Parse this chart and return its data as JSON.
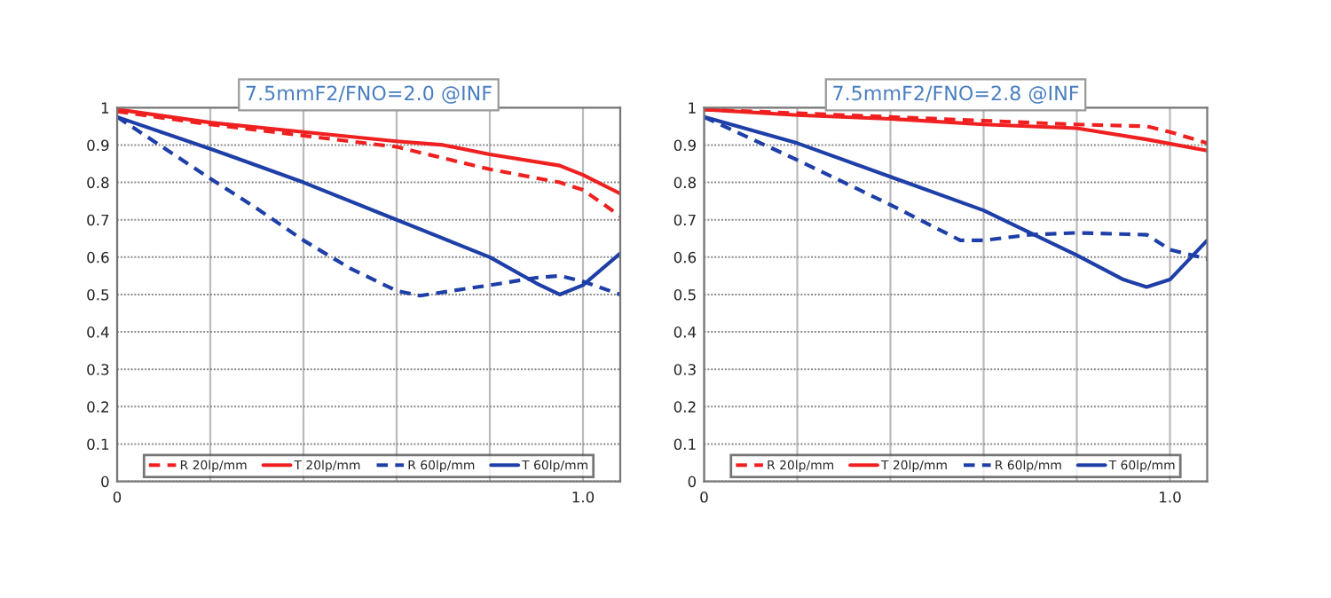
{
  "chart_data": [
    {
      "type": "line",
      "title": "7.5mmF2/FNO=2.0 @INF",
      "xlim": [
        0,
        1.08
      ],
      "ylim": [
        0,
        1
      ],
      "xticks": [
        {
          "value": 0,
          "label": "0"
        },
        {
          "value": 0.2,
          "label": null
        },
        {
          "value": 0.4,
          "label": null
        },
        {
          "value": 0.6,
          "label": null
        },
        {
          "value": 0.8,
          "label": null
        },
        {
          "value": 1.0,
          "label": "1.0"
        }
      ],
      "yticks": [
        {
          "value": 0,
          "label": "0"
        },
        {
          "value": 0.1,
          "label": "0.1"
        },
        {
          "value": 0.2,
          "label": "0.2"
        },
        {
          "value": 0.3,
          "label": "0.3"
        },
        {
          "value": 0.4,
          "label": "0.4"
        },
        {
          "value": 0.5,
          "label": "0.5"
        },
        {
          "value": 0.6,
          "label": "0.6"
        },
        {
          "value": 0.7,
          "label": "0.7"
        },
        {
          "value": 0.8,
          "label": "0.8"
        },
        {
          "value": 0.9,
          "label": "0.9"
        },
        {
          "value": 1,
          "label": "1"
        }
      ],
      "grid": true,
      "legend": "bottom",
      "series": [
        {
          "name": "R 20lp/mm",
          "color": "#f02020",
          "line_style": "dashed",
          "x": [
            0,
            0.2,
            0.4,
            0.6,
            0.8,
            0.95,
            1.0,
            1.08
          ],
          "values": [
            0.99,
            0.955,
            0.925,
            0.895,
            0.835,
            0.8,
            0.78,
            0.71
          ]
        },
        {
          "name": "T 20lp/mm",
          "color": "#f02020",
          "line_style": "solid",
          "x": [
            0,
            0.2,
            0.4,
            0.6,
            0.7,
            0.8,
            0.95,
            1.0,
            1.08
          ],
          "values": [
            0.995,
            0.96,
            0.935,
            0.91,
            0.9,
            0.875,
            0.845,
            0.82,
            0.77
          ]
        },
        {
          "name": "R 60lp/mm",
          "color": "#1f3fa8",
          "line_style": "dashed",
          "x": [
            0,
            0.2,
            0.3,
            0.4,
            0.5,
            0.6,
            0.65,
            0.8,
            0.9,
            0.95,
            1.0,
            1.08
          ],
          "values": [
            0.975,
            0.81,
            0.73,
            0.645,
            0.57,
            0.51,
            0.497,
            0.525,
            0.545,
            0.55,
            0.535,
            0.5
          ]
        },
        {
          "name": "T 60lp/mm",
          "color": "#1f3fa8",
          "line_style": "solid",
          "x": [
            0,
            0.2,
            0.4,
            0.6,
            0.8,
            0.9,
            0.95,
            1.0,
            1.08
          ],
          "values": [
            0.975,
            0.89,
            0.8,
            0.7,
            0.6,
            0.53,
            0.5,
            0.525,
            0.61
          ]
        }
      ]
    },
    {
      "type": "line",
      "title": "7.5mmF2/FNO=2.8 @INF",
      "xlim": [
        0,
        1.08
      ],
      "ylim": [
        0,
        1
      ],
      "xticks": [
        {
          "value": 0,
          "label": "0"
        },
        {
          "value": 0.2,
          "label": null
        },
        {
          "value": 0.4,
          "label": null
        },
        {
          "value": 0.6,
          "label": null
        },
        {
          "value": 0.8,
          "label": null
        },
        {
          "value": 1.0,
          "label": "1.0"
        }
      ],
      "yticks": [
        {
          "value": 0,
          "label": "0"
        },
        {
          "value": 0.1,
          "label": "0.1"
        },
        {
          "value": 0.2,
          "label": "0.2"
        },
        {
          "value": 0.3,
          "label": "0.3"
        },
        {
          "value": 0.4,
          "label": "0.4"
        },
        {
          "value": 0.5,
          "label": "0.5"
        },
        {
          "value": 0.6,
          "label": "0.6"
        },
        {
          "value": 0.7,
          "label": "0.7"
        },
        {
          "value": 0.8,
          "label": "0.8"
        },
        {
          "value": 0.9,
          "label": "0.9"
        },
        {
          "value": 1,
          "label": "1"
        }
      ],
      "grid": true,
      "legend": "bottom",
      "series": [
        {
          "name": "R 20lp/mm",
          "color": "#f02020",
          "line_style": "dashed",
          "x": [
            0,
            0.2,
            0.4,
            0.6,
            0.8,
            0.95,
            1.0,
            1.08
          ],
          "values": [
            0.995,
            0.985,
            0.975,
            0.965,
            0.955,
            0.95,
            0.935,
            0.905
          ]
        },
        {
          "name": "T 20lp/mm",
          "color": "#f02020",
          "line_style": "solid",
          "x": [
            0,
            0.2,
            0.4,
            0.6,
            0.8,
            0.95,
            1.08
          ],
          "values": [
            0.995,
            0.98,
            0.97,
            0.955,
            0.945,
            0.915,
            0.885
          ]
        },
        {
          "name": "R 60lp/mm",
          "color": "#1f3fa8",
          "line_style": "dashed",
          "x": [
            0,
            0.2,
            0.4,
            0.55,
            0.6,
            0.7,
            0.8,
            0.95,
            1.0,
            1.08
          ],
          "values": [
            0.975,
            0.86,
            0.74,
            0.645,
            0.645,
            0.66,
            0.665,
            0.66,
            0.62,
            0.595
          ]
        },
        {
          "name": "T 60lp/mm",
          "color": "#1f3fa8",
          "line_style": "solid",
          "x": [
            0,
            0.2,
            0.4,
            0.6,
            0.8,
            0.9,
            0.95,
            1.0,
            1.08
          ],
          "values": [
            0.975,
            0.905,
            0.815,
            0.725,
            0.605,
            0.54,
            0.52,
            0.54,
            0.645
          ]
        }
      ]
    }
  ]
}
